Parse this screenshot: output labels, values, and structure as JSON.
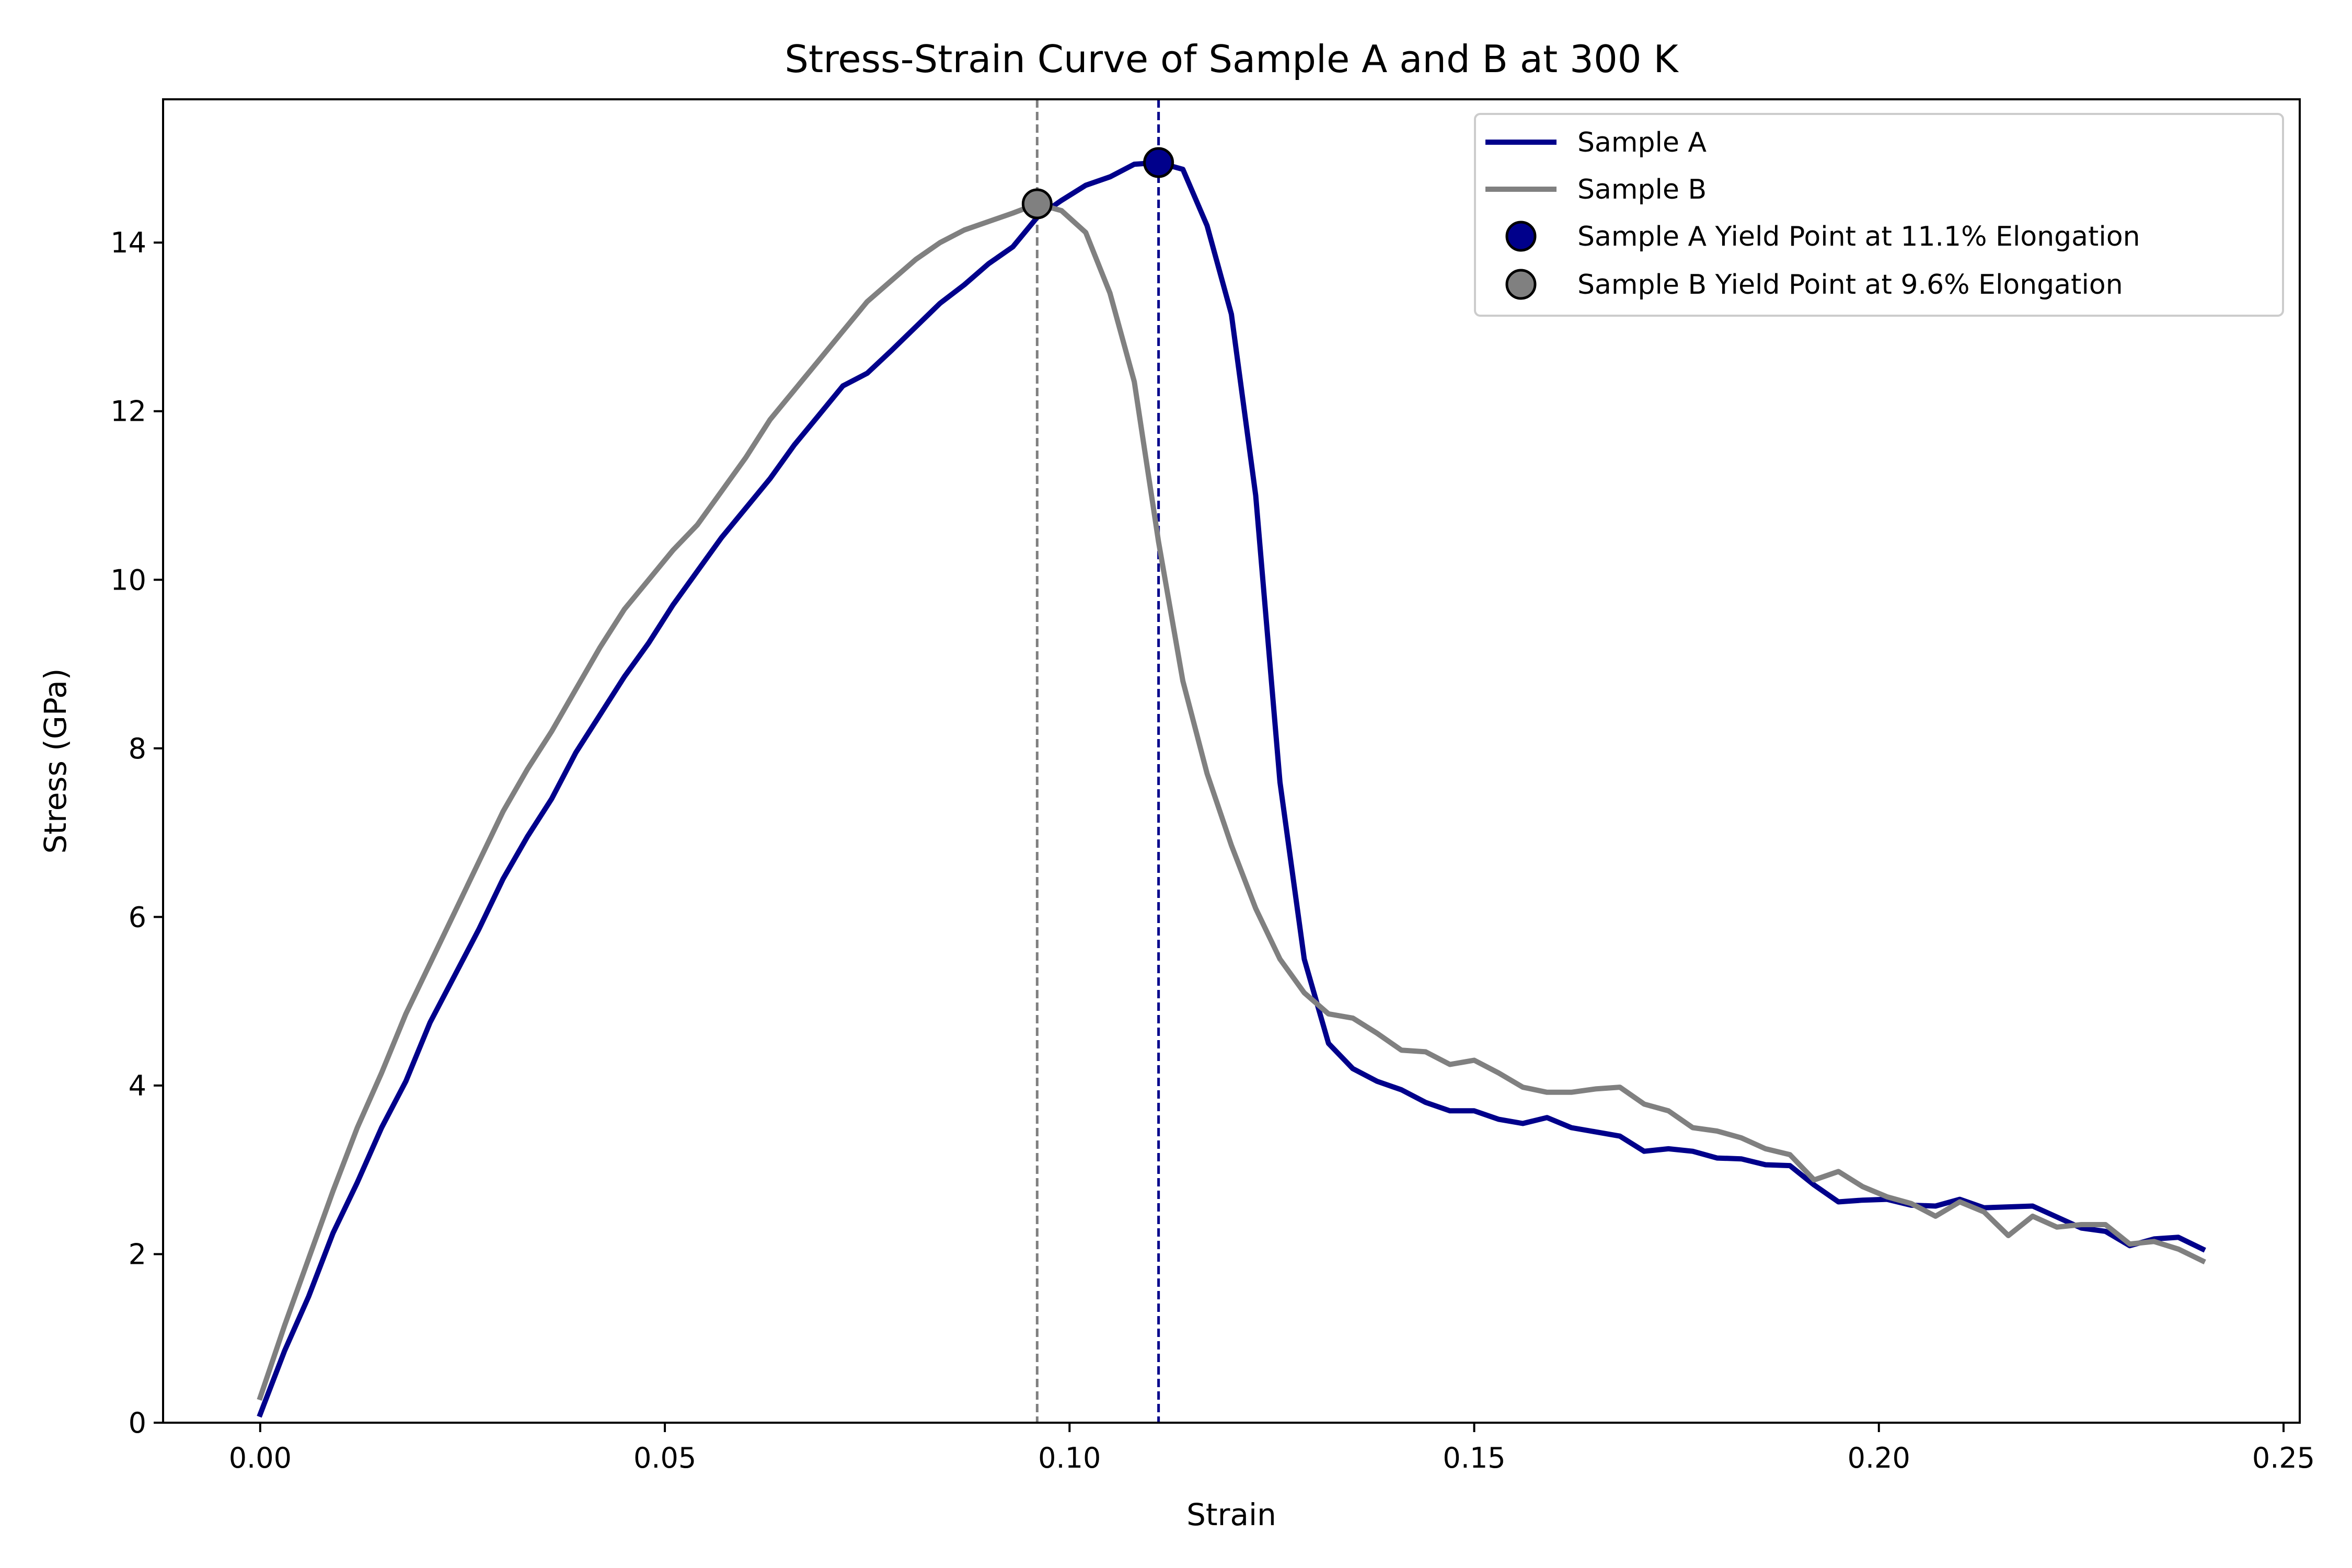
{
  "chart_data": {
    "type": "line",
    "title": "Stress-Strain Curve of Sample A and B at 300 K",
    "xlabel": "Strain",
    "ylabel": "Stress (GPa)",
    "xlim": [
      -0.012,
      0.252
    ],
    "ylim": [
      0,
      15.7
    ],
    "xticks": [
      "0.00",
      "0.05",
      "0.10",
      "0.15",
      "0.20",
      "0.25"
    ],
    "xtick_values": [
      0.0,
      0.05,
      0.1,
      0.15,
      0.2,
      0.25
    ],
    "yticks": [
      "0",
      "2",
      "4",
      "6",
      "8",
      "10",
      "12",
      "14"
    ],
    "ytick_values": [
      0,
      2,
      4,
      6,
      8,
      10,
      12,
      14
    ],
    "grid": false,
    "legend_position": "top-right",
    "series": [
      {
        "name": "Sample A",
        "color": "#00008b",
        "x": [
          0.0,
          0.003,
          0.006,
          0.009,
          0.012,
          0.015,
          0.018,
          0.021,
          0.024,
          0.027,
          0.03,
          0.033,
          0.036,
          0.039,
          0.042,
          0.045,
          0.048,
          0.051,
          0.054,
          0.057,
          0.06,
          0.063,
          0.066,
          0.069,
          0.072,
          0.075,
          0.078,
          0.081,
          0.084,
          0.087,
          0.09,
          0.093,
          0.096,
          0.099,
          0.102,
          0.105,
          0.108,
          0.111,
          0.114,
          0.117,
          0.12,
          0.123,
          0.126,
          0.129,
          0.132,
          0.135,
          0.138,
          0.141,
          0.144,
          0.147,
          0.15,
          0.153,
          0.156,
          0.159,
          0.162,
          0.165,
          0.168,
          0.171,
          0.174,
          0.177,
          0.18,
          0.183,
          0.186,
          0.189,
          0.192,
          0.195,
          0.198,
          0.201,
          0.204,
          0.207,
          0.21,
          0.213,
          0.216,
          0.219,
          0.222,
          0.225,
          0.228,
          0.231,
          0.234,
          0.237,
          0.24
        ],
        "y": [
          0.1,
          0.85,
          1.5,
          2.25,
          2.85,
          3.5,
          4.05,
          4.75,
          5.3,
          5.85,
          6.45,
          6.95,
          7.4,
          7.95,
          8.4,
          8.85,
          9.25,
          9.7,
          10.1,
          10.5,
          10.85,
          11.2,
          11.6,
          11.95,
          12.3,
          12.45,
          12.72,
          13.0,
          13.28,
          13.5,
          13.75,
          13.95,
          14.3,
          14.5,
          14.68,
          14.78,
          14.93,
          14.95,
          14.87,
          14.2,
          13.15,
          11.0,
          7.6,
          5.5,
          4.5,
          4.2,
          4.05,
          3.95,
          3.8,
          3.7,
          3.7,
          3.6,
          3.55,
          3.62,
          3.5,
          3.45,
          3.4,
          3.22,
          3.25,
          3.22,
          3.14,
          3.13,
          3.06,
          3.05,
          2.82,
          2.62,
          2.64,
          2.65,
          2.58,
          2.57,
          2.65,
          2.55,
          2.56,
          2.57,
          2.44,
          2.31,
          2.27,
          2.1,
          2.18,
          2.2,
          2.06
        ]
      },
      {
        "name": "Sample B",
        "color": "#808080",
        "x": [
          0.0,
          0.003,
          0.006,
          0.009,
          0.012,
          0.015,
          0.018,
          0.021,
          0.024,
          0.027,
          0.03,
          0.033,
          0.036,
          0.039,
          0.042,
          0.045,
          0.048,
          0.051,
          0.054,
          0.057,
          0.06,
          0.063,
          0.066,
          0.069,
          0.072,
          0.075,
          0.078,
          0.081,
          0.084,
          0.087,
          0.09,
          0.093,
          0.096,
          0.099,
          0.102,
          0.105,
          0.108,
          0.111,
          0.114,
          0.117,
          0.12,
          0.123,
          0.126,
          0.129,
          0.132,
          0.135,
          0.138,
          0.141,
          0.144,
          0.147,
          0.15,
          0.153,
          0.156,
          0.159,
          0.162,
          0.165,
          0.168,
          0.171,
          0.174,
          0.177,
          0.18,
          0.183,
          0.186,
          0.189,
          0.192,
          0.195,
          0.198,
          0.201,
          0.204,
          0.207,
          0.21,
          0.213,
          0.216,
          0.219,
          0.222,
          0.225,
          0.228,
          0.231,
          0.234,
          0.237,
          0.24
        ],
        "y": [
          0.3,
          1.15,
          1.95,
          2.75,
          3.5,
          4.15,
          4.85,
          5.45,
          6.05,
          6.65,
          7.25,
          7.75,
          8.2,
          8.7,
          9.2,
          9.65,
          10.0,
          10.35,
          10.65,
          11.05,
          11.45,
          11.9,
          12.25,
          12.6,
          12.95,
          13.3,
          13.55,
          13.8,
          14.0,
          14.15,
          14.25,
          14.35,
          14.46,
          14.38,
          14.12,
          13.4,
          12.35,
          10.45,
          8.8,
          7.7,
          6.85,
          6.1,
          5.5,
          5.1,
          4.85,
          4.8,
          4.62,
          4.42,
          4.4,
          4.25,
          4.3,
          4.15,
          3.98,
          3.92,
          3.92,
          3.96,
          3.98,
          3.78,
          3.7,
          3.5,
          3.46,
          3.38,
          3.25,
          3.18,
          2.88,
          2.98,
          2.8,
          2.68,
          2.6,
          2.45,
          2.62,
          2.5,
          2.22,
          2.45,
          2.32,
          2.35,
          2.35,
          2.12,
          2.15,
          2.06,
          1.92
        ]
      }
    ],
    "yield_points": [
      {
        "name": "Sample A  Yield Point at 11.1% Elongation",
        "x": 0.111,
        "y": 14.95,
        "color": "#00008b"
      },
      {
        "name": "Sample B  Yield Point at 9.6% Elongation",
        "x": 0.096,
        "y": 14.46,
        "color": "#808080"
      }
    ],
    "reference_lines": [
      {
        "x": 0.096,
        "color": "#808080",
        "style": "dashed"
      },
      {
        "x": 0.111,
        "color": "#00008b",
        "style": "dashed"
      }
    ]
  }
}
